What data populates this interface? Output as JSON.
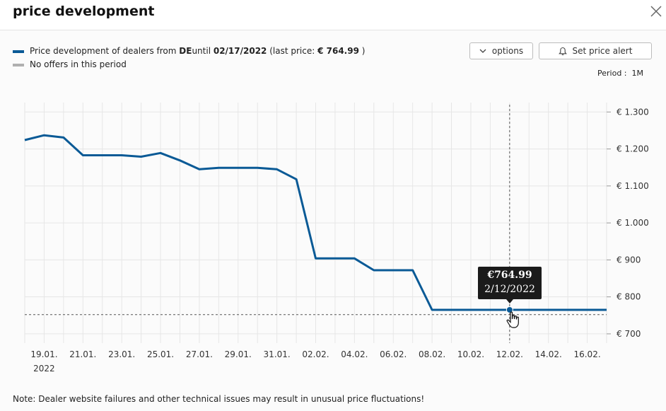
{
  "header": {
    "title": "price development"
  },
  "legend": {
    "series_prefix": "Price development of dealers from ",
    "country": "DE",
    "until_word": "until ",
    "until_date": "02/17/2022",
    "last_price_prefix": " (last price: ",
    "last_price": "€ 764.99",
    "last_price_suffix": " )",
    "no_offers": "No offers in this period"
  },
  "toolbar": {
    "options_label": "options",
    "alert_label": "Set price alert"
  },
  "period": {
    "label": "Period :",
    "value": "1M"
  },
  "tooltip": {
    "price": "€764.99",
    "date": "2/12/2022"
  },
  "note": "Note: Dealer website failures and other technical issues may result in unusual price fluctuations!",
  "colors": {
    "series": "#0a5a96",
    "no_offers": "#b0b0b0",
    "grid": "#e6e6e6",
    "tooltip_bg": "#1b1b1b"
  },
  "icons": {
    "close": "close-icon",
    "options": "chevron-down-icon",
    "alert": "bell-icon",
    "cursor": "hand-pointer-icon"
  },
  "chart_data": {
    "type": "line",
    "title": "",
    "xlabel": "",
    "ylabel": "",
    "y_ticks": [
      {
        "value": 700,
        "label": "€ 700"
      },
      {
        "value": 800,
        "label": "€ 800"
      },
      {
        "value": 900,
        "label": "€ 900"
      },
      {
        "value": 1000,
        "label": "€ 1.000"
      },
      {
        "value": 1100,
        "label": "€ 1.100"
      },
      {
        "value": 1200,
        "label": "€ 1.200"
      },
      {
        "value": 1300,
        "label": "€ 1.300"
      }
    ],
    "x_ticks": [
      {
        "date": "2022-01-19",
        "label": "19.01.",
        "sublabel": "2022"
      },
      {
        "date": "2022-01-21",
        "label": "21.01."
      },
      {
        "date": "2022-01-23",
        "label": "23.01."
      },
      {
        "date": "2022-01-25",
        "label": "25.01."
      },
      {
        "date": "2022-01-27",
        "label": "27.01."
      },
      {
        "date": "2022-01-29",
        "label": "29.01."
      },
      {
        "date": "2022-01-31",
        "label": "31.01."
      },
      {
        "date": "2022-02-02",
        "label": "02.02."
      },
      {
        "date": "2022-02-04",
        "label": "04.02."
      },
      {
        "date": "2022-02-06",
        "label": "06.02."
      },
      {
        "date": "2022-02-08",
        "label": "08.02."
      },
      {
        "date": "2022-02-10",
        "label": "10.02."
      },
      {
        "date": "2022-02-12",
        "label": "12.02."
      },
      {
        "date": "2022-02-14",
        "label": "14.02."
      },
      {
        "date": "2022-02-16",
        "label": "16.02."
      }
    ],
    "x_range": [
      "2022-01-18",
      "2022-02-17"
    ],
    "y_range": [
      675,
      1335
    ],
    "grid": true,
    "legend_position": "top-left",
    "series": [
      {
        "name": "Price development of dealers from DE",
        "points": [
          [
            "2022-01-18",
            1224
          ],
          [
            "2022-01-19",
            1237
          ],
          [
            "2022-01-20",
            1231
          ],
          [
            "2022-01-21",
            1183
          ],
          [
            "2022-01-22",
            1183
          ],
          [
            "2022-01-23",
            1183
          ],
          [
            "2022-01-24",
            1179
          ],
          [
            "2022-01-25",
            1189
          ],
          [
            "2022-01-26",
            1169
          ],
          [
            "2022-01-27",
            1145
          ],
          [
            "2022-01-28",
            1149
          ],
          [
            "2022-01-29",
            1149
          ],
          [
            "2022-01-30",
            1149
          ],
          [
            "2022-01-31",
            1145
          ],
          [
            "2022-02-01",
            1118
          ],
          [
            "2022-02-02",
            904
          ],
          [
            "2022-02-03",
            904
          ],
          [
            "2022-02-04",
            904
          ],
          [
            "2022-02-05",
            872
          ],
          [
            "2022-02-06",
            872
          ],
          [
            "2022-02-07",
            872
          ],
          [
            "2022-02-08",
            764.99
          ],
          [
            "2022-02-09",
            764.99
          ],
          [
            "2022-02-10",
            764.99
          ],
          [
            "2022-02-11",
            764.99
          ],
          [
            "2022-02-12",
            764.99
          ],
          [
            "2022-02-13",
            764.99
          ],
          [
            "2022-02-14",
            764.99
          ],
          [
            "2022-02-15",
            764.99
          ],
          [
            "2022-02-16",
            764.99
          ],
          [
            "2022-02-17",
            764.99
          ]
        ]
      }
    ],
    "highlight": {
      "date": "2022-02-12",
      "value": 764.99
    },
    "reference_line": {
      "value": 752
    }
  }
}
